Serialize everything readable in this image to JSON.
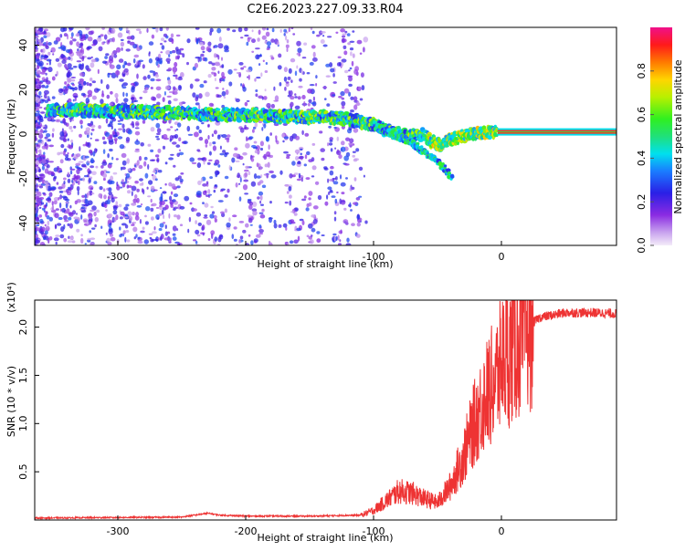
{
  "title": "C2E6.2023.227.09.33.R04",
  "chart_data": [
    {
      "type": "heatmap",
      "xlabel": "Height of straight line (km)",
      "ylabel": "Frequency (Hz)",
      "xlim": [
        -365,
        90
      ],
      "ylim": [
        -50,
        48
      ],
      "xticks": [
        -300,
        -200,
        -100,
        0
      ],
      "yticks": [
        -40,
        -20,
        0,
        20,
        40
      ],
      "ridge": {
        "x": [
          -355,
          -320,
          -290,
          -260,
          -230,
          -200,
          -170,
          -140,
          -120,
          -100,
          -85,
          -70,
          -62,
          -55,
          -48,
          -42,
          -35,
          -25,
          -15,
          -5,
          5,
          90
        ],
        "y": [
          11,
          10.5,
          10,
          9.5,
          9,
          8.5,
          8,
          7.5,
          7,
          4,
          1,
          -1,
          0,
          -3,
          -5,
          -3,
          -2,
          0,
          1,
          1,
          1,
          1
        ]
      },
      "branch": {
        "x": [
          -100,
          -85,
          -70,
          -60,
          -50,
          -42,
          -38
        ],
        "y": [
          4,
          0,
          -4,
          -8,
          -12,
          -17,
          -20
        ]
      },
      "colorbar": {
        "label": "Normalized spectral amplitude",
        "range": [
          0,
          1
        ],
        "ticks": [
          0.0,
          0.2,
          0.4,
          0.6,
          0.8
        ]
      }
    },
    {
      "type": "line",
      "xlabel": "Height of straight line (km)",
      "ylabel": "SNR (10 * v/v)",
      "multiplier": "(x10⁴)",
      "xlim": [
        -365,
        90
      ],
      "ylim": [
        0,
        2.28
      ],
      "xticks": [
        -300,
        -200,
        -100,
        0
      ],
      "yticks": [
        0.5,
        1.0,
        1.5,
        2.0
      ],
      "color": "#ee3333",
      "envelope": {
        "x": [
          -365,
          -250,
          -240,
          -230,
          -220,
          -200,
          -150,
          -110,
          -100,
          -90,
          -80,
          -70,
          -60,
          -50,
          -40,
          -30,
          -20,
          -12,
          -5,
          0,
          10,
          20,
          30,
          50,
          70,
          90
        ],
        "y": [
          0.02,
          0.03,
          0.05,
          0.07,
          0.05,
          0.04,
          0.04,
          0.05,
          0.1,
          0.2,
          0.3,
          0.28,
          0.22,
          0.18,
          0.35,
          0.65,
          1.05,
          1.3,
          1.45,
          1.6,
          1.8,
          2.0,
          2.1,
          2.15,
          2.15,
          2.14
        ]
      }
    }
  ]
}
